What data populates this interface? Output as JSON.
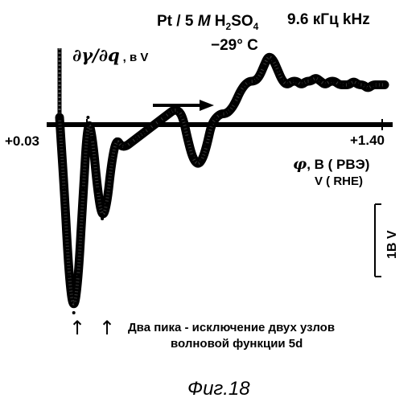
{
  "chart_data": {
    "type": "line",
    "title_parts": {
      "system_prefix": "Pt / 5 ",
      "system_M": "M",
      "system_acid": " H",
      "sub2": "2",
      "acid_SO": "SO",
      "sub4": "4",
      "frequency": "9.6 кГц  kHz",
      "temperature": "−29° C"
    },
    "ylabel": {
      "symbol": "∂γ/∂q",
      "units": ", в  V"
    },
    "xlabel": {
      "symbol": "φ",
      "line1": ", В ( РВЭ)",
      "line2": "V ( RHE)"
    },
    "x_start_label": "+0.03",
    "x_end_label": "+1.40",
    "xlim": [
      0.03,
      1.4
    ],
    "ylim": [
      -2.75,
      1.25
    ],
    "scale_bar": {
      "label": "1В V",
      "value_V": 1
    },
    "scan_direction": "anodic (left to right)",
    "annotation": {
      "line1": "Два пика -  исключение двух узлов",
      "line2": "волновой функции 5d"
    },
    "arrow_glyph": "↑",
    "series": [
      {
        "x": [
          0.03,
          0.05,
          0.07,
          0.09,
          0.11,
          0.13,
          0.15,
          0.17,
          0.19,
          0.21,
          0.23,
          0.25,
          0.27,
          0.29,
          0.31,
          0.33,
          0.35,
          0.37,
          0.39,
          0.41,
          0.43,
          0.45,
          0.47,
          0.49,
          0.51,
          0.53,
          0.55,
          0.57,
          0.59,
          0.61,
          0.63,
          0.65,
          0.67,
          0.69,
          0.71,
          0.73,
          0.75,
          0.77,
          0.79,
          0.81,
          0.83,
          0.85,
          0.87,
          0.89,
          0.91,
          0.93,
          0.95,
          0.97,
          0.99,
          1.01,
          1.03,
          1.05,
          1.07,
          1.09,
          1.11,
          1.13,
          1.15,
          1.17,
          1.19,
          1.21,
          1.23,
          1.25,
          1.27,
          1.29,
          1.31,
          1.33,
          1.35,
          1.37,
          1.4
        ],
        "y": [
          0.1,
          -0.9,
          -2.1,
          -2.6,
          -2.1,
          -0.9,
          0.1,
          -0.2,
          -0.9,
          -1.3,
          -1.1,
          -0.5,
          -0.2,
          -0.3,
          -0.3,
          -0.25,
          -0.2,
          -0.15,
          -0.1,
          -0.05,
          0.0,
          0.05,
          0.1,
          0.15,
          0.2,
          0.2,
          0.1,
          -0.2,
          -0.45,
          -0.55,
          -0.5,
          -0.3,
          0.0,
          0.1,
          0.15,
          0.15,
          0.2,
          0.3,
          0.45,
          0.55,
          0.6,
          0.6,
          0.65,
          0.8,
          0.95,
          0.9,
          0.75,
          0.6,
          0.55,
          0.6,
          0.6,
          0.55,
          0.6,
          0.6,
          0.65,
          0.6,
          0.55,
          0.6,
          0.6,
          0.55,
          0.55,
          0.55,
          0.6,
          0.55,
          0.55,
          0.5,
          0.55,
          0.55,
          0.55
        ]
      }
    ]
  },
  "caption": "Фиг.18"
}
